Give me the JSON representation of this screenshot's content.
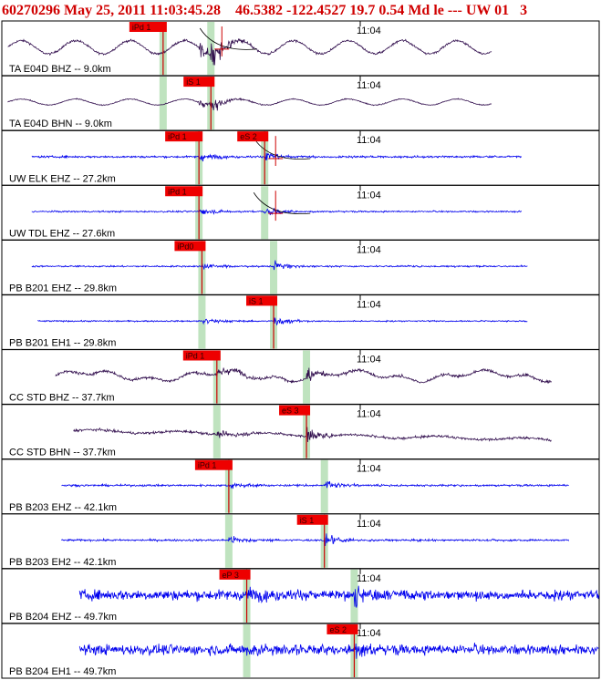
{
  "header": {
    "text": "60270296 May 25, 2011 11:03:45.28    46.5382 -122.4527 19.7 0.54 Md le --- UW 01   3"
  },
  "colors": {
    "header": "#d00000",
    "trace_blue": "#0000ee",
    "trace_dark": "#33104f",
    "pick_label_bg": "#ee0000",
    "pick_line": "#cc0000",
    "pick_window": "#bfe3bf",
    "frame": "#000000"
  },
  "chart_data": {
    "type": "line",
    "time_label": "11:04",
    "traces": [
      {
        "label": "TA E04D BHZ -- 9.0km",
        "color": "dark",
        "start": 0.01,
        "end": 0.82,
        "amplitude": 0.55,
        "background": "sine",
        "p_arrival": 0.33,
        "s_arrival": 0.35,
        "windows": [
          0.27,
          0.35
        ],
        "picks": [
          {
            "label": "iPd 1",
            "pos": 0.27
          }
        ],
        "annotations": "timing-curve"
      },
      {
        "label": "TA E04D BHN -- 9.0km",
        "color": "dark",
        "start": 0.01,
        "end": 0.82,
        "amplitude": 0.25,
        "background": "sine",
        "p_arrival": 0.33,
        "s_arrival": 0.35,
        "windows": [
          0.27,
          0.35
        ],
        "picks": [
          {
            "label": "iS 1",
            "pos": 0.35
          }
        ]
      },
      {
        "label": "UW ELK EHZ -- 27.2km",
        "color": "blue",
        "start": 0.05,
        "end": 0.87,
        "amplitude": 0.25,
        "background": "noise",
        "p_arrival": 0.33,
        "s_arrival": 0.44,
        "windows": [
          0.33,
          0.44
        ],
        "picks": [
          {
            "label": "iPd 1",
            "pos": 0.33
          },
          {
            "label": "eS 2",
            "pos": 0.44
          }
        ],
        "annotations": "timing-curve"
      },
      {
        "label": "UW TDL EHZ -- 27.6km",
        "color": "blue",
        "start": 0.05,
        "end": 0.87,
        "amplitude": 0.2,
        "background": "noise",
        "p_arrival": 0.33,
        "s_arrival": 0.44,
        "windows": [
          0.33,
          0.44
        ],
        "picks": [
          {
            "label": "iPd 1",
            "pos": 0.33
          }
        ],
        "annotations": "timing-curve"
      },
      {
        "label": "PB B201 EHZ -- 29.8km",
        "color": "blue",
        "start": 0.05,
        "end": 0.88,
        "amplitude": 0.2,
        "background": "noise",
        "p_arrival": 0.335,
        "s_arrival": 0.455,
        "windows": [
          0.335,
          0.455
        ],
        "picks": [
          {
            "label": "iPd0",
            "pos": 0.335
          }
        ]
      },
      {
        "label": "PB B201 EH1 -- 29.8km",
        "color": "blue",
        "start": 0.06,
        "end": 0.88,
        "amplitude": 0.18,
        "background": "noise",
        "p_arrival": 0.335,
        "s_arrival": 0.455,
        "windows": [
          0.335,
          0.455
        ],
        "picks": [
          {
            "label": "iS 1",
            "pos": 0.455
          }
        ]
      },
      {
        "label": "CC STD BHZ -- 37.7km",
        "color": "dark",
        "start": 0.09,
        "end": 0.92,
        "amplitude": 0.35,
        "background": "wander",
        "p_arrival": 0.36,
        "s_arrival": 0.51,
        "windows": [
          0.36,
          0.51
        ],
        "picks": [
          {
            "label": "iPd 1",
            "pos": 0.36
          }
        ]
      },
      {
        "label": "CC STD BHN -- 37.7km",
        "color": "dark",
        "start": 0.12,
        "end": 0.92,
        "amplitude": 0.3,
        "background": "drift",
        "p_arrival": 0.36,
        "s_arrival": 0.51,
        "windows": [
          0.36,
          0.51
        ],
        "picks": [
          {
            "label": "eS 3",
            "pos": 0.51
          }
        ]
      },
      {
        "label": "PB B203 EHZ -- 42.1km",
        "color": "blue",
        "start": 0.1,
        "end": 0.95,
        "amplitude": 0.25,
        "background": "noise",
        "p_arrival": 0.38,
        "s_arrival": 0.54,
        "windows": [
          0.38,
          0.54
        ],
        "picks": [
          {
            "label": "iPd 1",
            "pos": 0.38
          }
        ]
      },
      {
        "label": "PB B203 EH2 -- 42.1km",
        "color": "blue",
        "start": 0.1,
        "end": 0.95,
        "amplitude": 0.25,
        "background": "noise",
        "p_arrival": 0.38,
        "s_arrival": 0.54,
        "windows": [
          0.38,
          0.54
        ],
        "picks": [
          {
            "label": "iS 1",
            "pos": 0.54
          }
        ]
      },
      {
        "label": "PB B204 EHZ -- 49.7km",
        "color": "blue",
        "start": 0.13,
        "end": 1.0,
        "amplitude": 0.45,
        "background": "heavy-noise",
        "p_arrival": 0.41,
        "s_arrival": 0.59,
        "windows": [
          0.41,
          0.59
        ],
        "picks": [
          {
            "label": "eP 3",
            "pos": 0.41
          }
        ]
      },
      {
        "label": "PB B204 EH1 -- 49.7km",
        "color": "blue",
        "start": 0.13,
        "end": 1.0,
        "amplitude": 0.45,
        "background": "heavy-noise",
        "p_arrival": 0.41,
        "s_arrival": 0.59,
        "windows": [
          0.41,
          0.59
        ],
        "picks": [
          {
            "label": "eS 2",
            "pos": 0.59
          }
        ]
      }
    ]
  }
}
